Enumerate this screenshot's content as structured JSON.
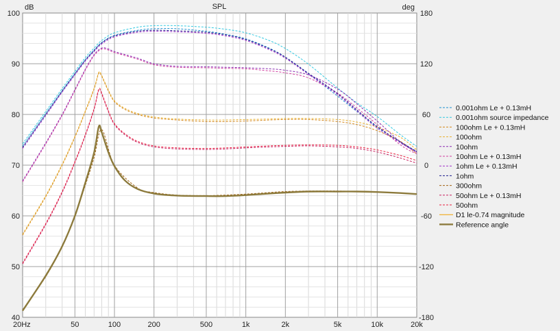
{
  "chart_data": {
    "type": "line",
    "title": "SPL",
    "ylabel_left": "dB",
    "ylabel_right": "deg",
    "x_scale": "log",
    "xlim": [
      20,
      20000
    ],
    "ylim_left": [
      40,
      100
    ],
    "ylim_right": [
      -180,
      180
    ],
    "grid": true,
    "legend_position": "right",
    "x_ticks": [
      {
        "v": 20,
        "label": "20Hz"
      },
      {
        "v": 50,
        "label": "50"
      },
      {
        "v": 100,
        "label": "100"
      },
      {
        "v": 200,
        "label": "200"
      },
      {
        "v": 500,
        "label": "500"
      },
      {
        "v": 1000,
        "label": "1k"
      },
      {
        "v": 2000,
        "label": "2k"
      },
      {
        "v": 5000,
        "label": "5k"
      },
      {
        "v": 10000,
        "label": "10k"
      },
      {
        "v": 20000,
        "label": "20k"
      }
    ],
    "y_ticks_left": [
      40,
      50,
      60,
      70,
      80,
      90,
      100
    ],
    "y_ticks_right": [
      -180,
      -120,
      -60,
      0,
      60,
      120,
      180
    ],
    "series": [
      {
        "name": "0.001ohm Le + 0.13mH",
        "color": "#1e90d0",
        "dash": "3,2",
        "x": [
          20,
          30,
          40,
          50,
          60,
          70,
          80,
          100,
          150,
          200,
          300,
          500,
          700,
          1000,
          1500,
          2000,
          3000,
          5000,
          7000,
          10000,
          15000,
          20000
        ],
        "y": [
          73.8,
          80.2,
          84.7,
          88.1,
          90.8,
          92.7,
          94.2,
          95.6,
          96.6,
          96.9,
          96.9,
          96.4,
          95.8,
          94.9,
          93.1,
          91.3,
          88.0,
          83.6,
          80.6,
          77.5,
          74.6,
          72.7
        ]
      },
      {
        "name": "0.001ohm source impedance",
        "color": "#30c8e0",
        "dash": "3,2",
        "x": [
          20,
          30,
          40,
          50,
          60,
          70,
          80,
          100,
          150,
          200,
          300,
          500,
          700,
          1000,
          1500,
          2000,
          3000,
          5000,
          7000,
          10000,
          15000,
          20000
        ],
        "y": [
          74.2,
          80.6,
          85.1,
          88.5,
          91.2,
          93.1,
          94.6,
          96.1,
          97.2,
          97.5,
          97.5,
          97.2,
          96.8,
          96.1,
          94.6,
          93.0,
          89.9,
          85.2,
          82.3,
          79.6,
          76.0,
          73.7
        ]
      },
      {
        "name": "100ohm Le + 0.13mH",
        "color": "#d4881a",
        "dash": "3,2",
        "x": [
          20,
          30,
          40,
          50,
          60,
          70,
          76,
          80,
          90,
          100,
          120,
          150,
          200,
          300,
          500,
          700,
          1000,
          1500,
          2000,
          3000,
          5000,
          7000,
          10000,
          15000,
          20000
        ],
        "y": [
          56.2,
          63.8,
          70.0,
          75.5,
          80.5,
          85.0,
          88.1,
          87.5,
          84.6,
          82.5,
          81.0,
          80.0,
          79.3,
          78.9,
          78.6,
          78.6,
          78.7,
          78.9,
          79.0,
          79.0,
          78.6,
          78.0,
          76.8,
          74.7,
          72.2
        ]
      },
      {
        "name": "100ohm",
        "color": "#e8b030",
        "dash": "3,2",
        "x": [
          20,
          30,
          40,
          50,
          60,
          70,
          76,
          80,
          90,
          100,
          120,
          150,
          200,
          300,
          500,
          700,
          1000,
          1500,
          2000,
          3000,
          5000,
          7000,
          10000,
          15000,
          20000
        ],
        "y": [
          56.4,
          64.0,
          70.2,
          75.7,
          80.7,
          85.2,
          88.3,
          87.7,
          84.8,
          82.7,
          81.2,
          80.2,
          79.5,
          79.1,
          78.9,
          78.9,
          79.0,
          79.1,
          79.2,
          79.2,
          79.0,
          78.5,
          77.5,
          75.5,
          73.0
        ]
      },
      {
        "name": "10ohm",
        "color": "#8a2bb0",
        "dash": "3,2",
        "x": [
          20,
          30,
          40,
          50,
          60,
          70,
          80,
          90,
          100,
          150,
          200,
          300,
          500,
          700,
          1000,
          1500,
          2000,
          3000,
          5000,
          7000,
          10000,
          15000,
          20000
        ],
        "y": [
          66.9,
          74.4,
          80.0,
          84.9,
          88.9,
          91.8,
          93.1,
          92.9,
          92.4,
          91.1,
          90.0,
          89.5,
          89.4,
          89.3,
          89.2,
          89.0,
          88.7,
          87.8,
          85.0,
          82.1,
          78.7,
          74.6,
          72.6
        ]
      },
      {
        "name": "10ohm Le + 0.13mH",
        "color": "#d040a0",
        "dash": "3,2",
        "x": [
          20,
          30,
          40,
          50,
          60,
          70,
          80,
          90,
          100,
          150,
          200,
          300,
          500,
          700,
          1000,
          1500,
          2000,
          3000,
          5000,
          7000,
          10000,
          15000,
          20000
        ],
        "y": [
          66.7,
          74.2,
          79.8,
          84.7,
          88.7,
          91.6,
          92.9,
          92.7,
          92.2,
          90.9,
          89.8,
          89.3,
          89.2,
          89.1,
          89.0,
          88.6,
          88.2,
          87.2,
          84.2,
          81.3,
          78.0,
          74.0,
          72.2
        ]
      },
      {
        "name": "1ohm Le + 0.13mH",
        "color": "#a030c8",
        "dash": "3,2",
        "x": [
          20,
          30,
          40,
          50,
          60,
          70,
          80,
          100,
          150,
          200,
          300,
          500,
          700,
          1000,
          1500,
          2000,
          3000,
          5000,
          7000,
          10000,
          15000,
          20000
        ],
        "y": [
          73.3,
          79.8,
          84.4,
          87.8,
          90.5,
          92.4,
          93.9,
          95.3,
          96.2,
          96.4,
          96.3,
          96.0,
          95.5,
          94.6,
          92.8,
          91.1,
          87.9,
          83.9,
          80.7,
          77.3,
          74.4,
          72.5
        ]
      },
      {
        "name": "1ohm",
        "color": "#1a1a8a",
        "dash": "3,2",
        "x": [
          20,
          30,
          40,
          50,
          60,
          70,
          80,
          100,
          150,
          200,
          300,
          500,
          700,
          1000,
          1500,
          2000,
          3000,
          5000,
          7000,
          10000,
          15000,
          20000
        ],
        "y": [
          73.5,
          80.0,
          84.6,
          88.0,
          90.7,
          92.6,
          94.1,
          95.5,
          96.4,
          96.6,
          96.5,
          96.2,
          95.7,
          94.8,
          93.0,
          91.3,
          88.1,
          84.1,
          80.9,
          77.6,
          74.6,
          72.7
        ]
      },
      {
        "name": "300ohm",
        "color": "#a06010",
        "dash": "3,2",
        "x": [
          20,
          30,
          40,
          50,
          60,
          70,
          80,
          100,
          150,
          200,
          300,
          500,
          700,
          1000,
          1500,
          2000,
          3000,
          5000,
          7000,
          10000,
          15000,
          20000
        ],
        "y": [
          41.5,
          48.0,
          54.0,
          60.0,
          66.0,
          71.5,
          77.0,
          70.0,
          65.5,
          64.6,
          64.1,
          64.0,
          64.1,
          64.3,
          64.6,
          64.8,
          64.9,
          64.9,
          64.8,
          64.7,
          64.5,
          64.3
        ]
      },
      {
        "name": "50ohm Le + 0.13mH",
        "color": "#c82060",
        "dash": "3,2",
        "x": [
          20,
          30,
          40,
          50,
          60,
          70,
          76,
          80,
          90,
          100,
          120,
          150,
          200,
          300,
          500,
          700,
          1000,
          1500,
          2000,
          3000,
          5000,
          7000,
          10000,
          15000,
          20000
        ],
        "y": [
          50.5,
          58.3,
          64.6,
          70.5,
          75.8,
          81.0,
          84.8,
          84.0,
          80.5,
          78.0,
          76.0,
          74.5,
          73.6,
          73.2,
          73.1,
          73.2,
          73.4,
          73.6,
          73.7,
          73.8,
          73.6,
          73.3,
          72.6,
          71.4,
          70.4
        ]
      },
      {
        "name": "50ohm",
        "color": "#e82040",
        "dash": "3,2",
        "x": [
          20,
          30,
          40,
          50,
          60,
          70,
          76,
          80,
          90,
          100,
          120,
          150,
          200,
          300,
          500,
          700,
          1000,
          1500,
          2000,
          3000,
          5000,
          7000,
          10000,
          15000,
          20000
        ],
        "y": [
          50.7,
          58.5,
          64.8,
          70.7,
          76.0,
          81.2,
          85.0,
          84.2,
          80.7,
          78.2,
          76.2,
          74.7,
          73.8,
          73.4,
          73.3,
          73.4,
          73.6,
          73.8,
          73.9,
          74.0,
          73.9,
          73.6,
          73.0,
          71.9,
          70.9
        ]
      },
      {
        "name": "D1 le-0.74 magnitude",
        "color": "#f0a000",
        "dash": "",
        "x": [
          20,
          30,
          40,
          50,
          60,
          70,
          76,
          80,
          90,
          100,
          120,
          150,
          200,
          300,
          500,
          700,
          1000,
          1500,
          2000,
          3000,
          5000,
          7000,
          10000,
          15000,
          20000
        ],
        "y": [
          41.3,
          48.2,
          54.0,
          60.0,
          66.5,
          72.5,
          77.6,
          76.5,
          72.5,
          69.8,
          67.0,
          65.3,
          64.4,
          64.0,
          63.9,
          63.9,
          64.1,
          64.4,
          64.6,
          64.8,
          64.8,
          64.8,
          64.7,
          64.5,
          64.3
        ]
      },
      {
        "name": "Reference angle",
        "color": "#8c7a3c",
        "dash": "",
        "width": 2.4,
        "x": [
          20,
          30,
          40,
          50,
          60,
          70,
          76,
          80,
          90,
          100,
          120,
          150,
          200,
          300,
          500,
          700,
          1000,
          1500,
          2000,
          3000,
          5000,
          7000,
          10000,
          15000,
          20000
        ],
        "y": [
          41.3,
          48.2,
          54.0,
          60.0,
          66.5,
          72.5,
          77.6,
          76.5,
          72.5,
          69.8,
          67.0,
          65.3,
          64.4,
          64.0,
          63.9,
          63.9,
          64.1,
          64.4,
          64.6,
          64.8,
          64.8,
          64.8,
          64.7,
          64.5,
          64.3
        ]
      }
    ]
  }
}
